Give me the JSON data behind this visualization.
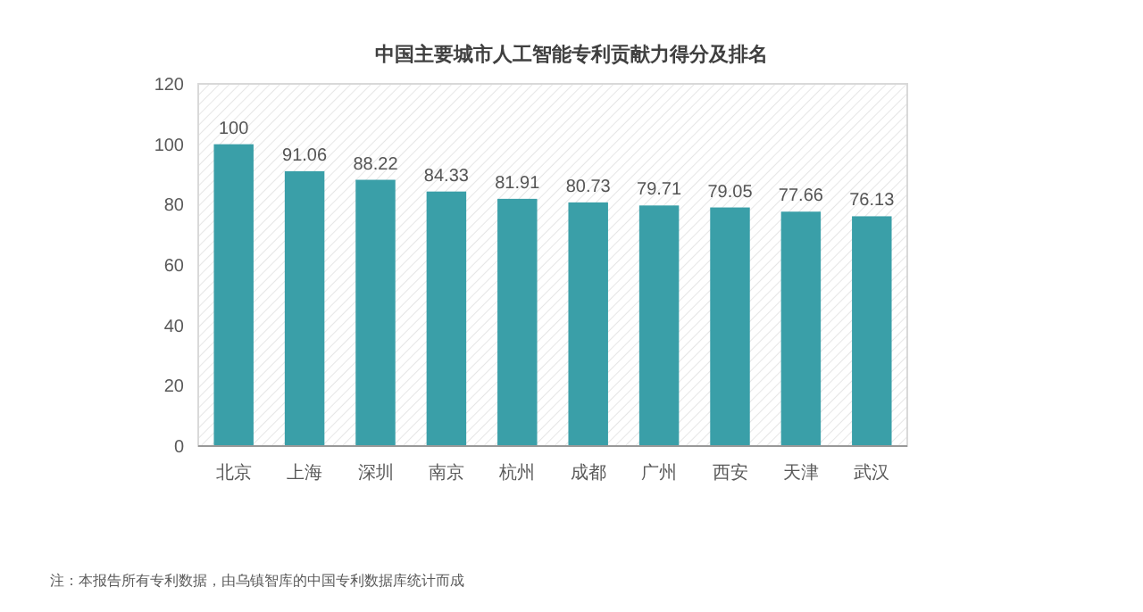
{
  "chart_data": {
    "type": "bar",
    "title": "中国主要城市人工智能专利贡献力得分及排名",
    "categories": [
      "北京",
      "上海",
      "深圳",
      "南京",
      "杭州",
      "成都",
      "广州",
      "西安",
      "天津",
      "武汉"
    ],
    "values": [
      100,
      91.06,
      88.22,
      84.33,
      81.91,
      80.73,
      79.71,
      79.05,
      77.66,
      76.13
    ],
    "color": "#3a9fa8",
    "data_labels": true,
    "ylim": [
      0,
      120
    ],
    "yticks": [
      0,
      20,
      40,
      60,
      80,
      100,
      120
    ],
    "grid": false,
    "annotations": [
      "注：本报告所有专利数据，由乌镇智库的中国专利数据库统计而成"
    ]
  }
}
